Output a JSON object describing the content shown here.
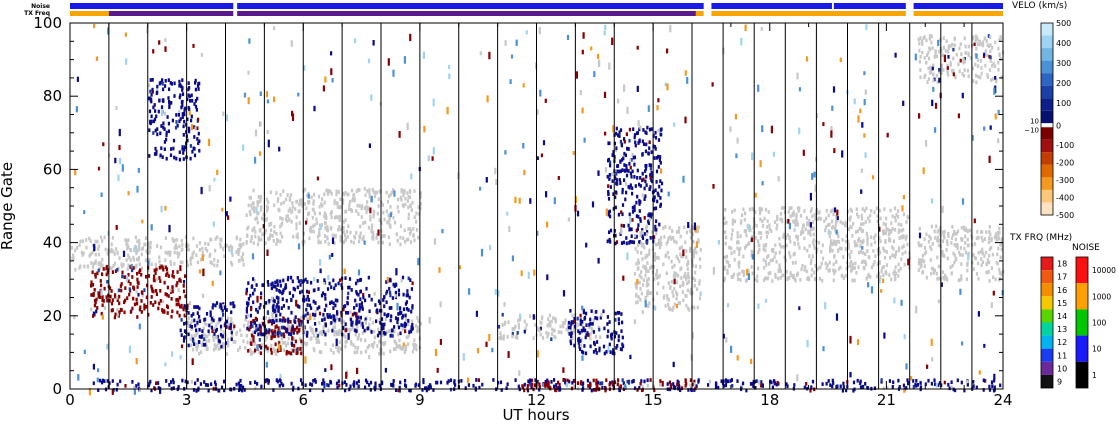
{
  "chart_data": {
    "type": "heatmap",
    "xlabel": "UT hours",
    "ylabel": "Range Gate",
    "xlim": [
      0,
      24
    ],
    "ylim": [
      0,
      100
    ],
    "x_ticks": [
      0,
      3,
      6,
      9,
      12,
      15,
      18,
      21,
      24
    ],
    "y_ticks": [
      0,
      20,
      40,
      60,
      80,
      100
    ],
    "grid": false,
    "header_rows": [
      "Noise",
      "TX Freq"
    ],
    "noise_bar_segments": [
      [
        0.0,
        4.2
      ],
      [
        4.3,
        16.3
      ],
      [
        16.5,
        19.6
      ],
      [
        19.65,
        21.5
      ],
      [
        21.7,
        24.0
      ]
    ],
    "txfreq_bar_segments": [
      {
        "start": 0.0,
        "end": 1.0,
        "color": "#f7a600"
      },
      {
        "start": 1.0,
        "end": 4.2,
        "color": "#5a1a8c"
      },
      {
        "start": 4.3,
        "end": 16.1,
        "color": "#5a1a8c"
      },
      {
        "start": 16.1,
        "end": 16.3,
        "color": "#f7a600"
      },
      {
        "start": 16.5,
        "end": 21.5,
        "color": "#f7a600"
      },
      {
        "start": 21.7,
        "end": 24.0,
        "color": "#f7a600"
      }
    ],
    "scan_boundaries_ut": [
      1.0,
      2.0,
      3.0,
      4.0,
      5.0,
      6.0,
      7.0,
      8.0,
      9.0,
      10.0,
      11.0,
      12.0,
      13.0,
      14.0,
      15.0,
      16.0,
      16.8,
      17.6,
      18.4,
      19.2,
      20.0,
      20.8,
      21.6,
      22.4,
      23.2
    ],
    "features": [
      {
        "kind": "ground_scatter",
        "t0": 0.0,
        "t1": 2.5,
        "g0": 33,
        "g1": 42,
        "color": "#c8c8c8"
      },
      {
        "kind": "mixed",
        "t0": 0.5,
        "t1": 3.0,
        "g0": 20,
        "g1": 34,
        "color": "#8b0000"
      },
      {
        "kind": "ground_scatter",
        "t0": 2.5,
        "t1": 4.5,
        "g0": 34,
        "g1": 42,
        "color": "#c8c8c8"
      },
      {
        "kind": "ground_scatter",
        "t0": 3.0,
        "t1": 9.0,
        "g0": 10,
        "g1": 20,
        "color": "#c8c8c8"
      },
      {
        "kind": "mixed",
        "t0": 2.8,
        "t1": 4.2,
        "g0": 12,
        "g1": 24,
        "color": "#0a0a8c"
      },
      {
        "kind": "mixed",
        "t0": 4.5,
        "t1": 6.0,
        "g0": 10,
        "g1": 20,
        "color": "#8b0000"
      },
      {
        "kind": "mixed",
        "t0": 4.5,
        "t1": 8.8,
        "g0": 15,
        "g1": 31,
        "color": "#0a0a8c"
      },
      {
        "kind": "ground_scatter",
        "t0": 4.5,
        "t1": 9.0,
        "g0": 40,
        "g1": 55,
        "color": "#c8c8c8"
      },
      {
        "kind": "mixed",
        "t0": 2.0,
        "t1": 3.3,
        "g0": 63,
        "g1": 85,
        "color": "#0a0a8c"
      },
      {
        "kind": "mixed",
        "t0": 0.5,
        "t1": 24.0,
        "g0": 0,
        "g1": 3,
        "color": "#0a0a8c"
      },
      {
        "kind": "mixed",
        "t0": 11.5,
        "t1": 16.1,
        "g0": 0,
        "g1": 3,
        "color": "#8b0000"
      },
      {
        "kind": "mixed",
        "t0": 11.0,
        "t1": 13.5,
        "g0": 14,
        "g1": 21,
        "color": "#c8c8c8"
      },
      {
        "kind": "mixed",
        "t0": 12.8,
        "t1": 14.2,
        "g0": 10,
        "g1": 22,
        "color": "#0a0a8c"
      },
      {
        "kind": "mixed",
        "t0": 13.8,
        "t1": 15.2,
        "g0": 40,
        "g1": 72,
        "color": "#0a0a8c"
      },
      {
        "kind": "ground_scatter",
        "t0": 14.5,
        "t1": 16.2,
        "g0": 22,
        "g1": 45,
        "color": "#c8c8c8"
      },
      {
        "kind": "ground_scatter",
        "t0": 16.8,
        "t1": 21.6,
        "g0": 30,
        "g1": 50,
        "color": "#c8c8c8"
      },
      {
        "kind": "ground_scatter",
        "t0": 21.8,
        "t1": 24.0,
        "g0": 30,
        "g1": 45,
        "color": "#c8c8c8"
      },
      {
        "kind": "mixed",
        "t0": 21.8,
        "t1": 24.0,
        "g0": 84,
        "g1": 97,
        "color": "#c8c8c8"
      }
    ],
    "velocity_colorbar": {
      "label": "VELO (km/s)",
      "ticks": [
        500,
        400,
        300,
        200,
        100,
        0,
        -100,
        -200,
        -300,
        -400,
        -500
      ],
      "zero_band_labels": [
        "10",
        "−10"
      ],
      "colors_top_to_bottom": [
        "#c7e9fa",
        "#9fd3f2",
        "#73b6e6",
        "#4a91d6",
        "#2c66c0",
        "#1a3fa6",
        "#0d1f8a",
        "#08106f",
        "#ffffff",
        "#7a0000",
        "#a01010",
        "#c23d00",
        "#e06a00",
        "#f59a20",
        "#fbc77a",
        "#fde3c2"
      ]
    },
    "txfreq_colorbar": {
      "label": "TX FRQ (MHz)",
      "ticks": [
        18,
        17,
        16,
        15,
        14,
        13,
        12,
        11,
        10,
        9
      ],
      "colors_top_to_bottom": [
        "#e41a1c",
        "#f05a10",
        "#f58d00",
        "#f5c800",
        "#5ad400",
        "#00d4a0",
        "#00b4f0",
        "#1a3cf0",
        "#6a2a9a",
        "#111111"
      ]
    },
    "noise_colorbar": {
      "label": "NOISE",
      "ticks": [
        10000,
        1000,
        100,
        10,
        1
      ],
      "colors_top_to_bottom": [
        "#ff1010",
        "#ffa000",
        "#00c800",
        "#1a1aff",
        "#000000"
      ]
    }
  }
}
